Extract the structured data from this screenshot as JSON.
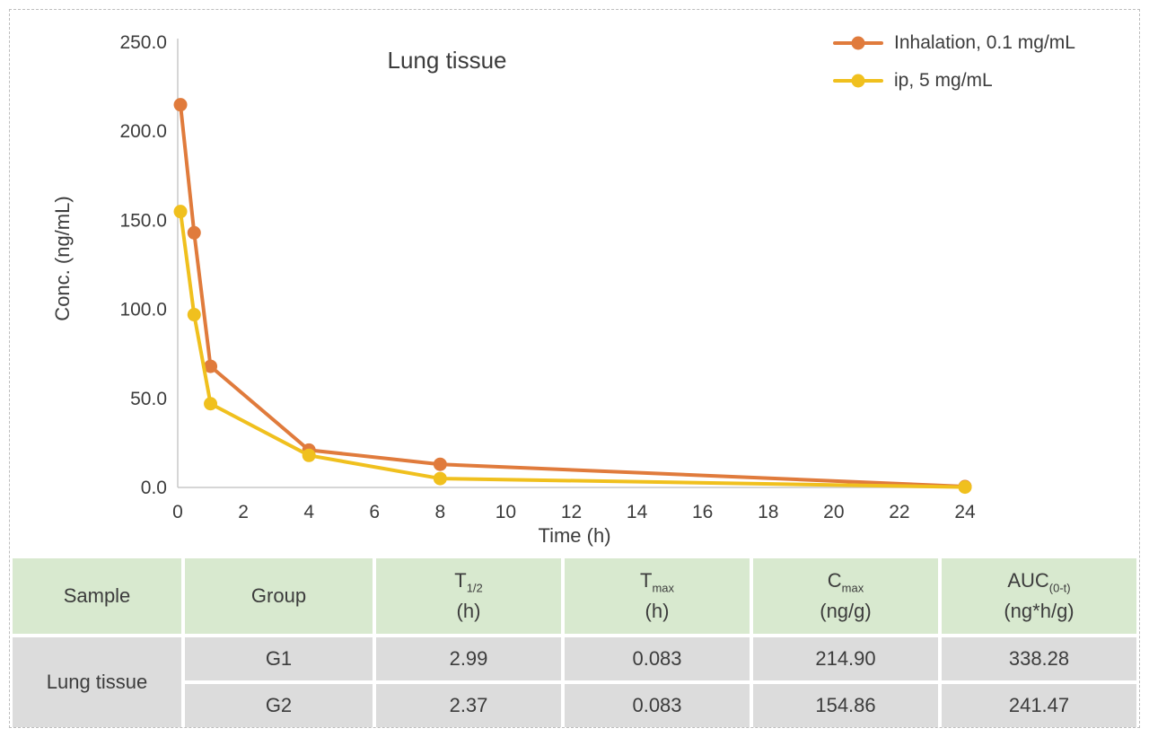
{
  "colors": {
    "header_green": "#D8E9CF",
    "row_gray": "#DCDCDC",
    "axis_gray": "#C8C8C8",
    "text_dark": "#3C3C3C",
    "frame_dash": "#BDBDBD"
  },
  "chart_data": {
    "type": "line",
    "title": "Lung tissue",
    "xlabel": "Time (h)",
    "ylabel": "Conc. (ng/mL)",
    "x": [
      0.083,
      0.5,
      1,
      4,
      8,
      24
    ],
    "series": [
      {
        "name": "Inhalation, 0.1 mg/mL",
        "color": "#E07B3C",
        "values": [
          214.9,
          143,
          68,
          21,
          13,
          0.5
        ]
      },
      {
        "name": "ip, 5 mg/mL",
        "color": "#F0C01E",
        "values": [
          154.9,
          97,
          47,
          18,
          5,
          0.2
        ]
      }
    ],
    "xlim": [
      0,
      24
    ],
    "ylim": [
      0,
      250
    ],
    "x_ticks": [
      0,
      2,
      4,
      6,
      8,
      10,
      12,
      14,
      16,
      18,
      20,
      22,
      24
    ],
    "y_ticks": [
      0,
      50,
      100,
      150,
      200,
      250
    ],
    "y_tick_decimals": 1,
    "grid": false,
    "legend_position": "top-right",
    "marker": "circle"
  },
  "table": {
    "headers": [
      {
        "symbol": "Sample",
        "subscript": "",
        "unit": ""
      },
      {
        "symbol": "Group",
        "subscript": "",
        "unit": ""
      },
      {
        "symbol": "T",
        "subscript": "1/2",
        "unit": "(h)"
      },
      {
        "symbol": "T",
        "subscript": "max",
        "unit": "(h)"
      },
      {
        "symbol": "C",
        "subscript": "max",
        "unit": "(ng/g)"
      },
      {
        "symbol": "AUC",
        "subscript": "(0-t)",
        "unit": "(ng*h/g)"
      }
    ],
    "sample_label": "Lung tissue",
    "rows": [
      [
        "G1",
        "2.99",
        "0.083",
        "214.90",
        "338.28"
      ],
      [
        "G2",
        "2.37",
        "0.083",
        "154.86",
        "241.47"
      ]
    ]
  }
}
